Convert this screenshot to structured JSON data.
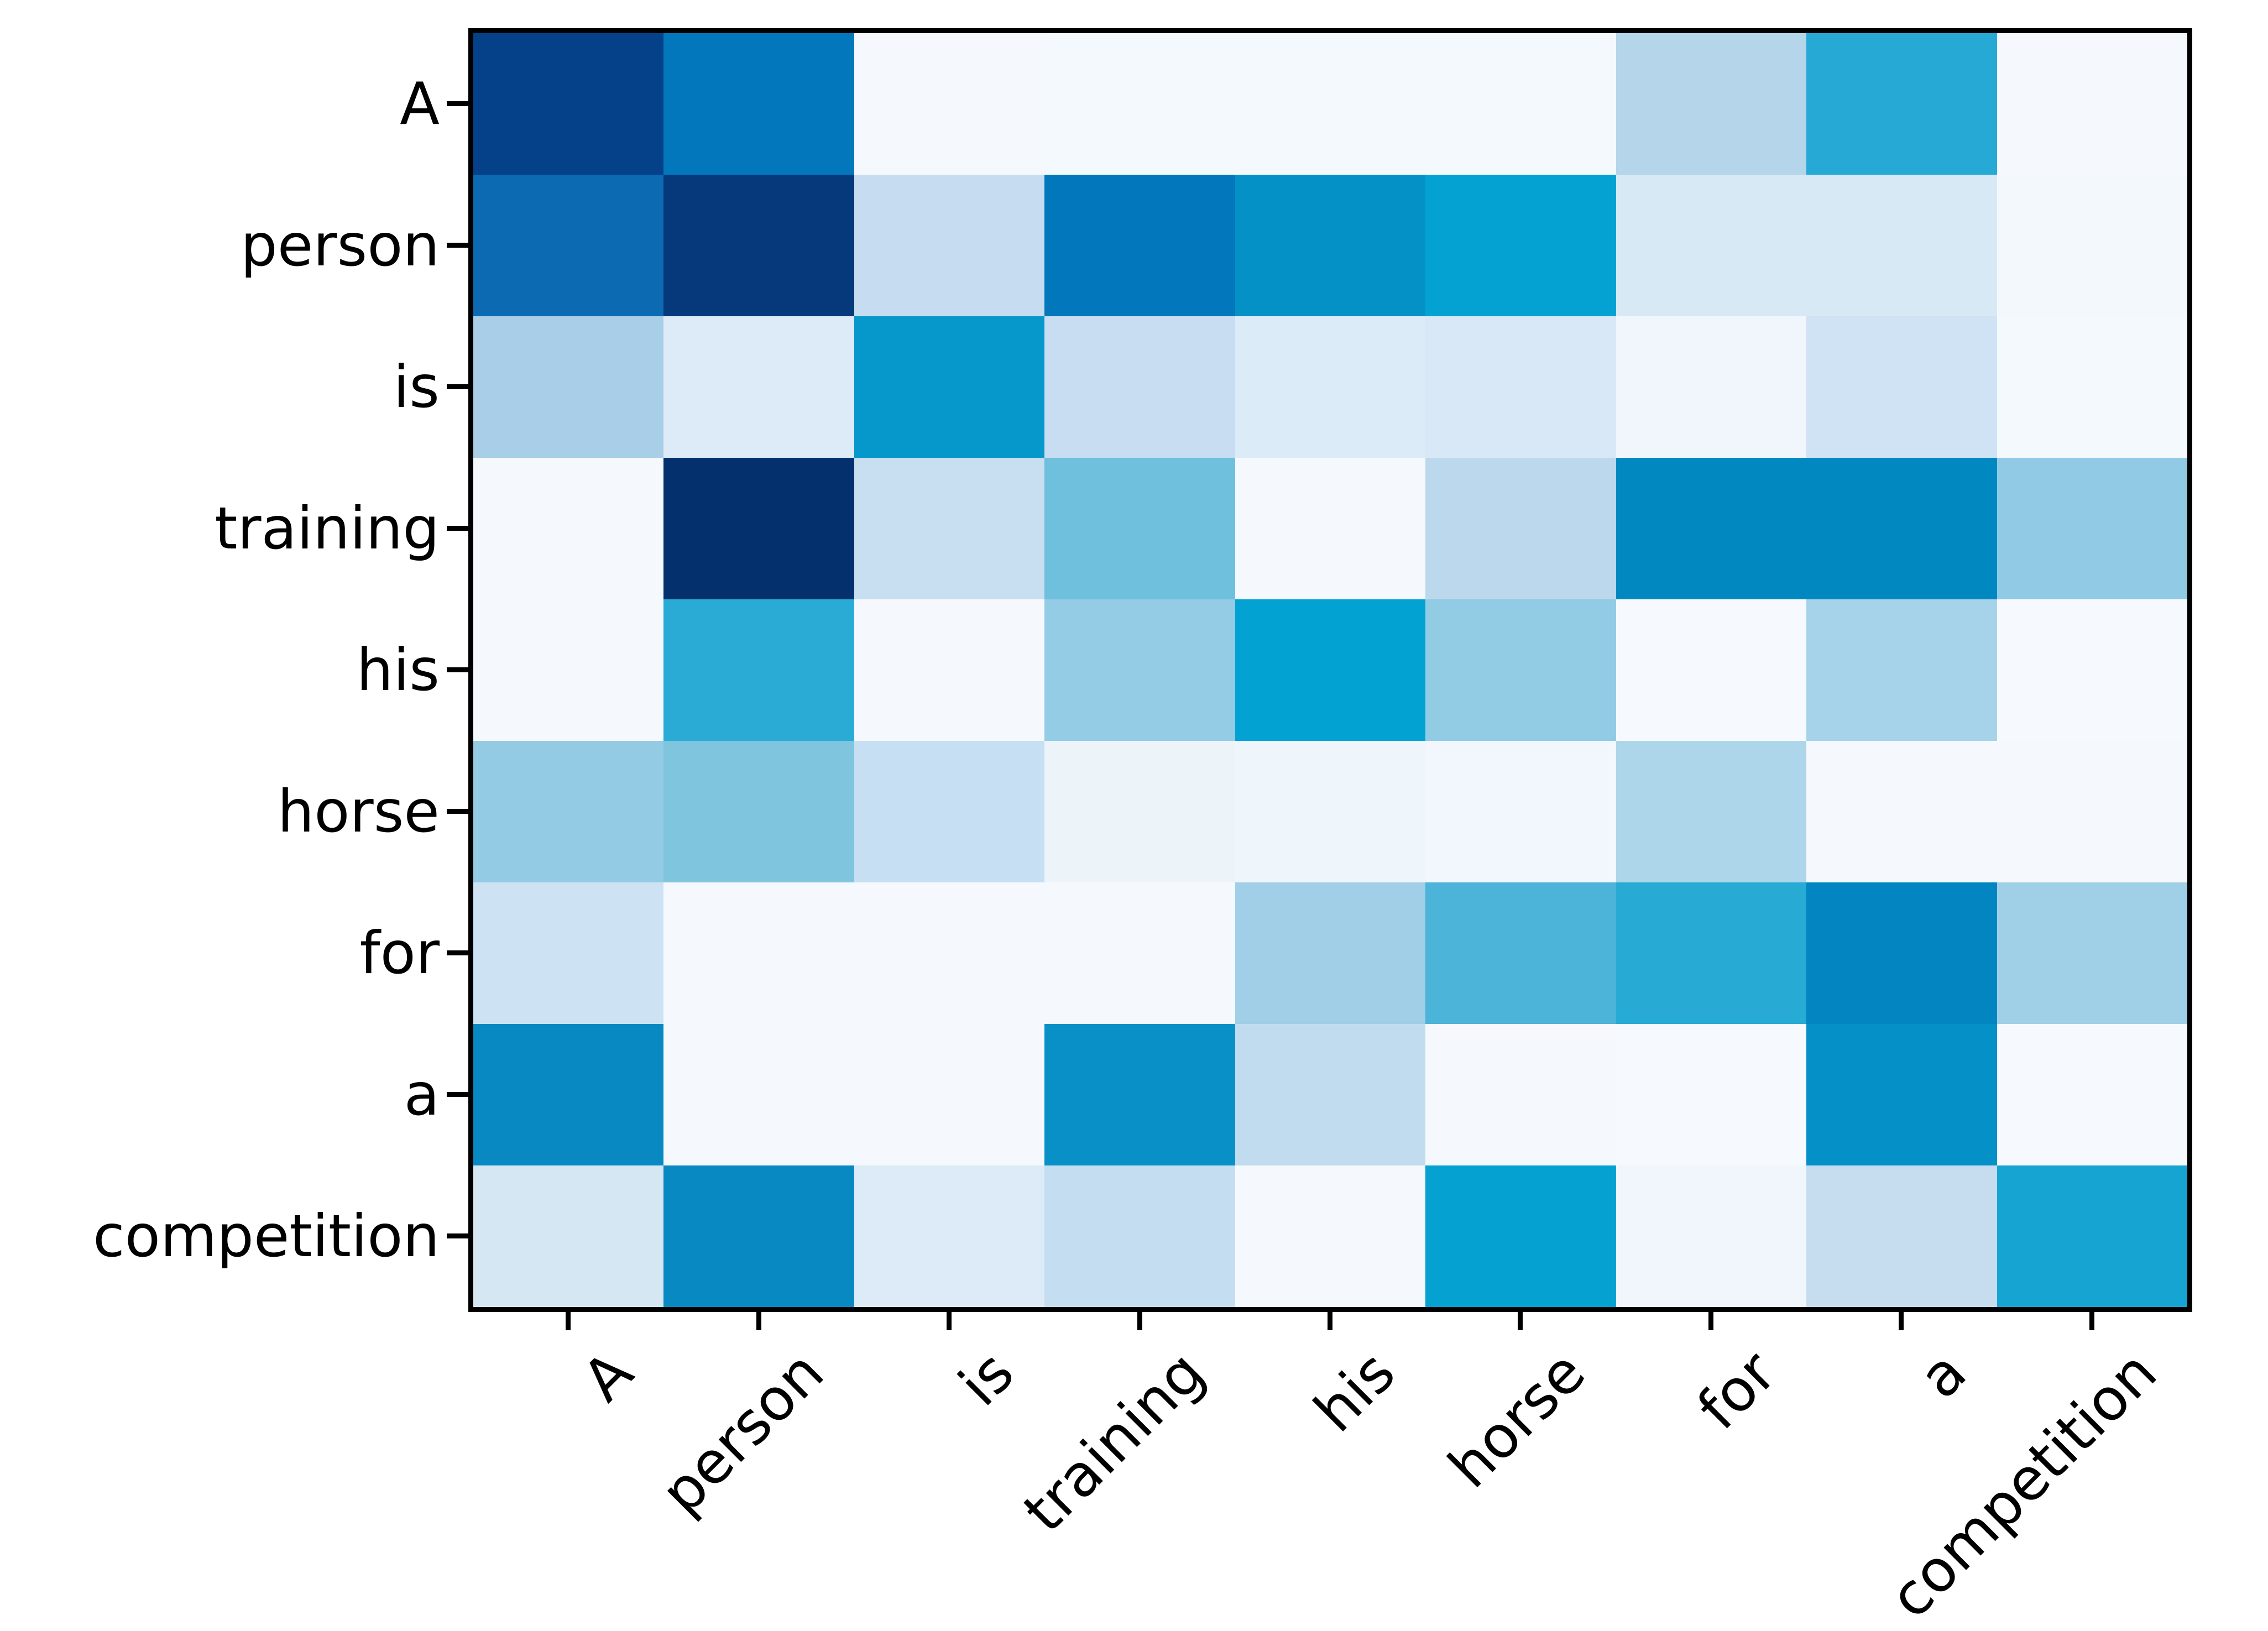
{
  "chart_data": {
    "type": "heatmap",
    "title": "",
    "x_tokens": [
      "A",
      "person",
      "is",
      "training",
      "his",
      "horse",
      "for",
      "a",
      "competition"
    ],
    "y_tokens": [
      "A",
      "person",
      "is",
      "training",
      "his",
      "horse",
      "for",
      "a",
      "competition"
    ],
    "colormap": "Blues",
    "value_range": [
      0,
      1
    ],
    "legend": "none",
    "grid": "off",
    "x_tick_rotation_deg": 45,
    "values": [
      [
        0.92,
        0.7,
        0.02,
        0.02,
        0.02,
        0.02,
        0.28,
        0.56,
        0.02
      ],
      [
        0.74,
        0.95,
        0.22,
        0.7,
        0.63,
        0.6,
        0.13,
        0.13,
        0.03
      ],
      [
        0.33,
        0.1,
        0.62,
        0.21,
        0.12,
        0.13,
        0.05,
        0.17,
        0.02
      ],
      [
        0.02,
        1.0,
        0.21,
        0.45,
        0.02,
        0.26,
        0.66,
        0.66,
        0.37
      ],
      [
        0.02,
        0.55,
        0.02,
        0.36,
        0.6,
        0.36,
        0.02,
        0.32,
        0.02
      ],
      [
        0.36,
        0.42,
        0.21,
        0.07,
        0.07,
        0.06,
        0.3,
        0.02,
        0.02
      ],
      [
        0.18,
        0.02,
        0.02,
        0.02,
        0.33,
        0.52,
        0.56,
        0.67,
        0.34
      ],
      [
        0.65,
        0.02,
        0.02,
        0.63,
        0.23,
        0.02,
        0.02,
        0.63,
        0.02
      ],
      [
        0.14,
        0.65,
        0.12,
        0.22,
        0.02,
        0.6,
        0.05,
        0.21,
        0.58
      ]
    ],
    "cell_colors": [
      [
        "#044189",
        "#0277bb",
        "#f5f9fd",
        "#f4f9fe",
        "#f4f9fe",
        "#f4f9fe",
        "#b5d5eb",
        "#27a9d6",
        "#f5f9fe"
      ],
      [
        "#0b6ab2",
        "#05397b",
        "#c6dcf0",
        "#0277bb",
        "#0391c6",
        "#04a2d2",
        "#d8e9f6",
        "#d8e9f6",
        "#f3f8fd"
      ],
      [
        "#a9cee7",
        "#ddeaf7",
        "#0698ca",
        "#c8ddf1",
        "#dcebf8",
        "#d8e8f6",
        "#f0f6fc",
        "#cfe3f4",
        "#f4f9fe"
      ],
      [
        "#f5f9fe",
        "#04316e",
        "#c8def1",
        "#6fc0dc",
        "#f5f9fe",
        "#bcd8ed",
        "#0288c1",
        "#0288c1",
        "#91cae4"
      ],
      [
        "#f5f9fe",
        "#2aabd5",
        "#f5f9fe",
        "#94cbe5",
        "#02a3d3",
        "#92cbe4",
        "#f6fafe",
        "#a6d3e9",
        "#f6fafe"
      ],
      [
        "#92cbe3",
        "#7fc5de",
        "#c6dff2",
        "#ecf4fa",
        "#eef5fb",
        "#f1f7fc",
        "#aed6ea",
        "#f5f9fe",
        "#f5f9fe"
      ],
      [
        "#cde2f2",
        "#f5f9fe",
        "#f5f9fe",
        "#f5f9fe",
        "#a0cfe7",
        "#4cb3d9",
        "#27abd5",
        "#0285c0",
        "#9fd0e7"
      ],
      [
        "#0989c1",
        "#f5f9fe",
        "#f5f9fe",
        "#0991c7",
        "#c2dcef",
        "#f5f9fe",
        "#f6fafe",
        "#0591c7",
        "#f6fafe"
      ],
      [
        "#d6e7f4",
        "#0989c1",
        "#dcebf7",
        "#c4ddf0",
        "#f5f9fe",
        "#04a1d1",
        "#f0f6fb",
        "#c6ddf0",
        "#16a5d3"
      ]
    ],
    "axis_colors": {
      "spine": "#000000",
      "tick": "#000000",
      "label_text": "#000000"
    }
  }
}
